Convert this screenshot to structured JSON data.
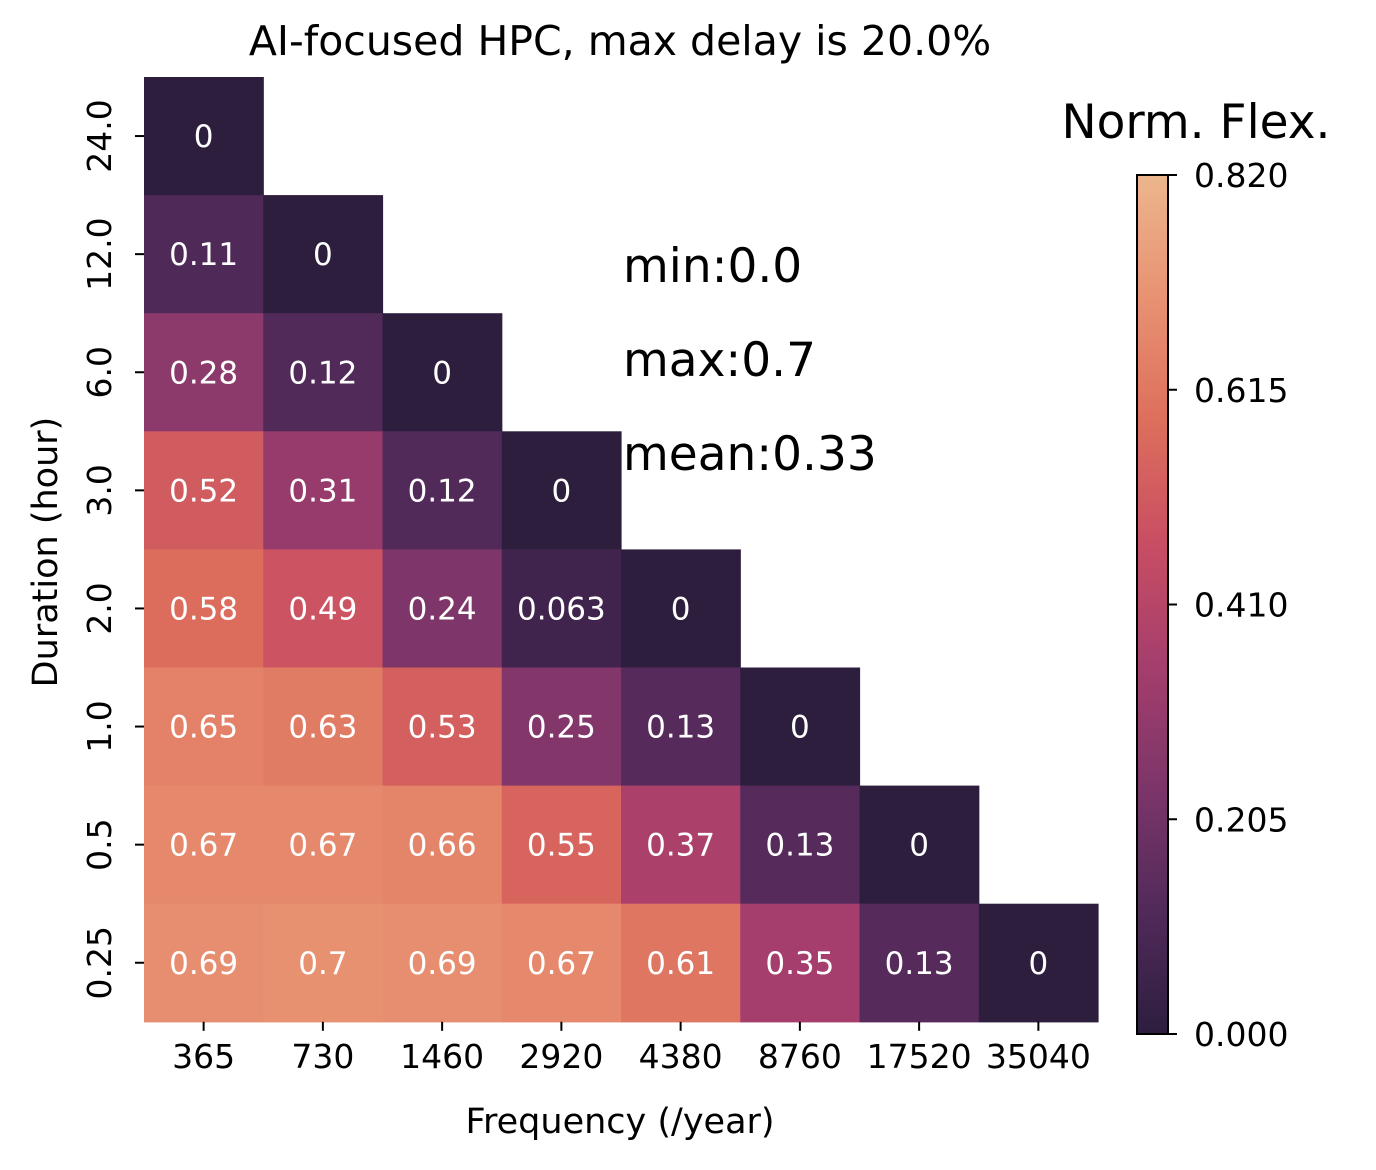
{
  "chart_data": {
    "type": "heatmap",
    "title": "AI-focused HPC, max delay is 20.0%",
    "xlabel": "Frequency (/year)",
    "ylabel": "Duration (hour)",
    "x_categories": [
      "365",
      "730",
      "1460",
      "2920",
      "4380",
      "8760",
      "17520",
      "35040"
    ],
    "y_categories": [
      "24.0",
      "12.0",
      "6.0",
      "3.0",
      "2.0",
      "1.0",
      "0.5",
      "0.25"
    ],
    "values": [
      [
        0,
        null,
        null,
        null,
        null,
        null,
        null,
        null
      ],
      [
        0.11,
        0,
        null,
        null,
        null,
        null,
        null,
        null
      ],
      [
        0.28,
        0.12,
        0,
        null,
        null,
        null,
        null,
        null
      ],
      [
        0.52,
        0.31,
        0.12,
        0,
        null,
        null,
        null,
        null
      ],
      [
        0.58,
        0.49,
        0.24,
        0.063,
        0,
        null,
        null,
        null
      ],
      [
        0.65,
        0.63,
        0.53,
        0.25,
        0.13,
        0,
        null,
        null
      ],
      [
        0.67,
        0.67,
        0.66,
        0.55,
        0.37,
        0.13,
        0,
        null
      ],
      [
        0.69,
        0.7,
        0.69,
        0.67,
        0.61,
        0.35,
        0.13,
        0
      ]
    ],
    "cell_labels": [
      [
        "0",
        null,
        null,
        null,
        null,
        null,
        null,
        null
      ],
      [
        "0.11",
        "0",
        null,
        null,
        null,
        null,
        null,
        null
      ],
      [
        "0.28",
        "0.12",
        "0",
        null,
        null,
        null,
        null,
        null
      ],
      [
        "0.52",
        "0.31",
        "0.12",
        "0",
        null,
        null,
        null,
        null
      ],
      [
        "0.58",
        "0.49",
        "0.24",
        "0.063",
        "0",
        null,
        null,
        null
      ],
      [
        "0.65",
        "0.63",
        "0.53",
        "0.25",
        "0.13",
        "0",
        null,
        null
      ],
      [
        "0.67",
        "0.67",
        "0.66",
        "0.55",
        "0.37",
        "0.13",
        "0",
        null
      ],
      [
        "0.69",
        "0.7",
        "0.69",
        "0.67",
        "0.61",
        "0.35",
        "0.13",
        "0"
      ]
    ],
    "colorbar": {
      "title": "Norm. Flex.",
      "range": [
        0,
        0.82
      ],
      "ticks": [
        0.0,
        0.205,
        0.41,
        0.615,
        0.82
      ],
      "tick_labels": [
        "0.000",
        "0.205",
        "0.410",
        "0.615",
        "0.820"
      ],
      "colormap": [
        "#2d1e3e",
        "#512a5a",
        "#7c3569",
        "#a53e6d",
        "#c84e63",
        "#dd6f5c",
        "#e89272",
        "#ecb68c"
      ]
    },
    "annotations": [
      "min:0.0",
      "max:0.7",
      "mean:0.33"
    ]
  }
}
